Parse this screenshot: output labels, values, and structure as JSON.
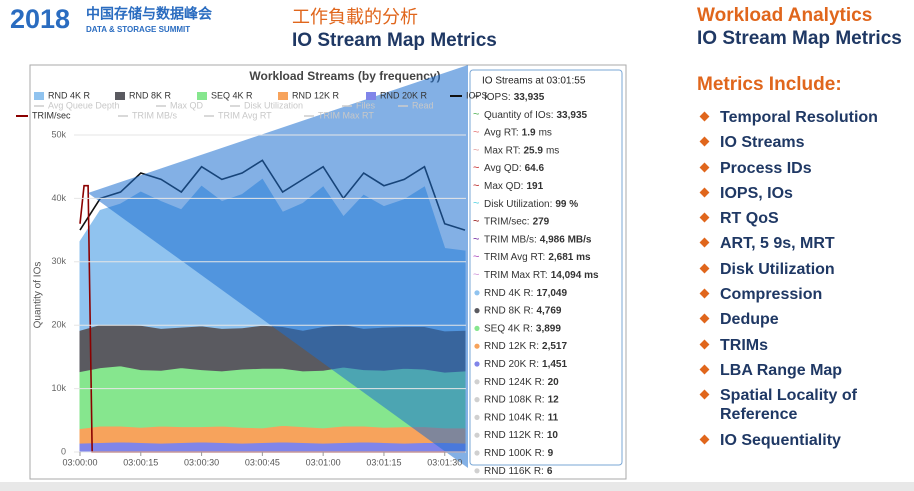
{
  "header": {
    "logo_year": "2018",
    "logo_cn": "中国存储与数据峰会",
    "logo_en": "DATA & STORAGE SUMMIT",
    "title_cn": "工作負載的分析",
    "title": "IO Stream Map Metrics"
  },
  "side": {
    "title": "Workload Analytics",
    "subtitle": "IO Stream Map Metrics",
    "list_title": "Metrics Include:",
    "items": [
      "Temporal Resolution",
      "IO Streams",
      "Process IDs",
      "IOPS, IOs",
      "RT QoS",
      "ART, 5 9s, MRT",
      "Disk Utilization",
      "Compression",
      "Dedupe",
      "TRIMs",
      "LBA Range Map",
      "Spatial Locality of Reference",
      "IO Sequentiality"
    ]
  },
  "chart_data": {
    "type": "area",
    "stacked": true,
    "title": "Workload Streams (by frequency)",
    "y_label": "Quantity of IOs",
    "x": [
      0,
      5,
      10,
      15,
      20,
      25,
      30,
      35,
      40,
      45,
      50,
      55,
      60,
      65,
      70,
      75,
      80,
      85,
      90,
      95
    ],
    "xlim": [
      0,
      95
    ],
    "xticks": [
      {
        "value": 0,
        "label": "03:00:00"
      },
      {
        "value": 15,
        "label": "03:00:15"
      },
      {
        "value": 30,
        "label": "03:00:30"
      },
      {
        "value": 45,
        "label": "03:00:45"
      },
      {
        "value": 60,
        "label": "03:01:00"
      },
      {
        "value": 75,
        "label": "03:01:15"
      },
      {
        "value": 90,
        "label": "03:01:30"
      }
    ],
    "ylim": [
      0,
      50000
    ],
    "yticks": [
      0,
      {
        "value": 10000,
        "label": "10k"
      },
      {
        "value": 20000,
        "label": "20k"
      },
      {
        "value": 30000,
        "label": "30k"
      },
      {
        "value": 40000,
        "label": "40k"
      },
      {
        "value": 50000,
        "label": "50k"
      }
    ],
    "grid": true,
    "series": [
      {
        "name": "RND 4K R",
        "color": "#90c3ef",
        "values": [
          14000,
          18000,
          19000,
          21000,
          20000,
          18500,
          22000,
          20000,
          21000,
          23000,
          18000,
          20000,
          22000,
          17000,
          21000,
          19000,
          20000,
          22000,
          13000,
          12500
        ]
      },
      {
        "name": "RND 8K R",
        "color": "#5a5a60",
        "values": [
          6500,
          6800,
          6500,
          7000,
          6600,
          6400,
          6900,
          6700,
          6500,
          6800,
          6600,
          6400,
          6900,
          6700,
          6500,
          6800,
          6600,
          6700,
          6500,
          6400
        ]
      },
      {
        "name": "SEQ 4K R",
        "color": "#86e68e",
        "values": [
          9000,
          9200,
          9500,
          9100,
          8800,
          9300,
          9000,
          8700,
          9200,
          9400,
          9000,
          8800,
          9100,
          9300,
          8900,
          9000,
          9200,
          9100,
          8800,
          9000
        ]
      },
      {
        "name": "RND 12K R",
        "color": "#f7a35c",
        "values": [
          2300,
          2600,
          2500,
          2400,
          2700,
          2500,
          2400,
          2600,
          2500,
          2300,
          2600,
          2500,
          2400,
          2600,
          2500,
          2400,
          2600,
          2500,
          2300,
          2400
        ]
      },
      {
        "name": "RND 20K R",
        "color": "#8085e9",
        "values": [
          1400,
          1500,
          1600,
          1500,
          1400,
          1500,
          1600,
          1500,
          1400,
          1500,
          1600,
          1500,
          1400,
          1500,
          1600,
          1500,
          1400,
          1500,
          1500,
          1400
        ]
      },
      {
        "name": "IOPS",
        "type": "line",
        "color": "#111111",
        "values": [
          35000,
          40000,
          41000,
          44000,
          43000,
          41000,
          45000,
          43000,
          44000,
          46000,
          41000,
          43000,
          45000,
          40000,
          44000,
          42000,
          43000,
          45000,
          36000,
          35000
        ]
      },
      {
        "name": "TRIM/sec",
        "type": "line",
        "color": "#8b0000",
        "x": [
          0,
          1,
          2,
          3,
          95
        ],
        "values": [
          36000,
          42000,
          42000,
          0,
          0
        ]
      }
    ],
    "inactive_legend": [
      "Avg Queue Depth",
      "Max QD",
      "Disk Utilization",
      "Files",
      "Read",
      "TRIM MB/s",
      "TRIM Avg RT",
      "TRIM Max RT"
    ],
    "tooltip": {
      "title": "IO Streams at 03:01:55",
      "rows": [
        {
          "label": "IOPS:",
          "value": "33,935",
          "color": "#111111",
          "marker": "line"
        },
        {
          "label": "Quantity of IOs:",
          "value": "33,935",
          "color": "#4caf50",
          "marker": "line"
        },
        {
          "label": "Avg RT:",
          "value": "1.9",
          "unit": "ms",
          "color": "#e57373",
          "marker": "line"
        },
        {
          "label": "Max RT:",
          "value": "25.9",
          "unit": "ms",
          "color": "#e0a0a0",
          "marker": "line"
        },
        {
          "label": "Avg QD:",
          "value": "64.6",
          "color": "#c62828",
          "marker": "line"
        },
        {
          "label": "Max QD:",
          "value": "191",
          "color": "#b71c1c",
          "marker": "line"
        },
        {
          "label": "Disk Utilization:",
          "value": "99 %",
          "color": "#4dd0e1",
          "marker": "line"
        },
        {
          "label": "TRIM/sec:",
          "value": "279",
          "color": "#8b0000",
          "marker": "line"
        },
        {
          "label": "TRIM MB/s:",
          "value": "4,986 MB/s",
          "color": "#6a1b9a",
          "marker": "line"
        },
        {
          "label": "TRIM Avg RT:",
          "value": "2,681 ms",
          "color": "#ab47bc",
          "marker": "line"
        },
        {
          "label": "TRIM Max RT:",
          "value": "14,094 ms",
          "color": "#ce93d8",
          "marker": "line"
        },
        {
          "label": "RND 4K R:",
          "value": "17,049",
          "color": "#90c3ef",
          "marker": "dot"
        },
        {
          "label": "RND 8K R:",
          "value": "4,769",
          "color": "#5a5a60",
          "marker": "dot"
        },
        {
          "label": "SEQ 4K R:",
          "value": "3,899",
          "color": "#86e68e",
          "marker": "dot"
        },
        {
          "label": "RND 12K R:",
          "value": "2,517",
          "color": "#f7a35c",
          "marker": "dot"
        },
        {
          "label": "RND 20K R:",
          "value": "1,451",
          "color": "#8085e9",
          "marker": "dot"
        },
        {
          "label": "RND 124K R:",
          "value": "20",
          "color": "#d0d0d0",
          "marker": "dot"
        },
        {
          "label": "RND 108K R:",
          "value": "12",
          "color": "#d0d0d0",
          "marker": "dot"
        },
        {
          "label": "RND 104K R:",
          "value": "11",
          "color": "#d0d0d0",
          "marker": "dot"
        },
        {
          "label": "RND 112K R:",
          "value": "10",
          "color": "#d0d0d0",
          "marker": "dot"
        },
        {
          "label": "RND 100K R:",
          "value": "9",
          "color": "#d0d0d0",
          "marker": "dot"
        },
        {
          "label": "RND 116K R:",
          "value": "6",
          "color": "#d0d0d0",
          "marker": "dot"
        }
      ]
    }
  }
}
